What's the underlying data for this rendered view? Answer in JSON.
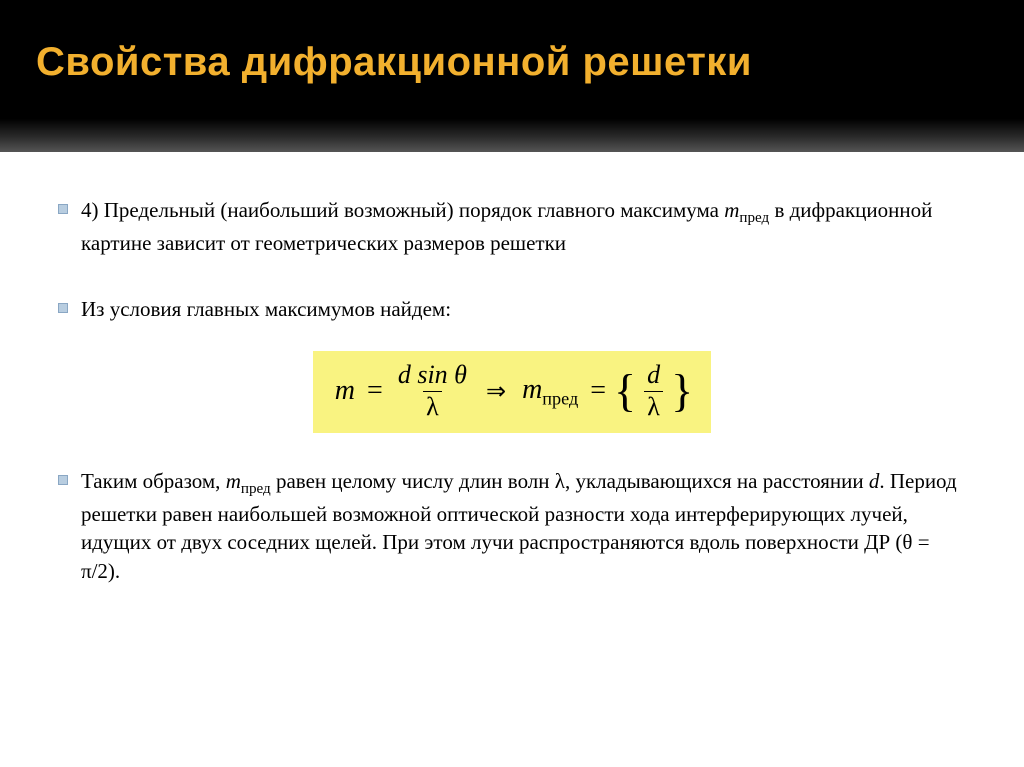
{
  "slide": {
    "title": "Свойства дифракционной решетки",
    "header_bg_top": "#000000",
    "header_bg_bottom": "#555555",
    "title_color": "#f2b02e",
    "title_fontsize": 40,
    "bullet_color": "#b8cde0",
    "body_fontsize": 21,
    "body_color": "#000000"
  },
  "bullets": {
    "b1_prefix": "4) Предельный (наибольший возможный) порядок главного максимума ",
    "b1_var": "m",
    "b1_sub": "пред",
    "b1_suffix": " в дифракционной картине зависит от геометрических размеров решетки",
    "b2": "Из условия главных максимумов найдем:",
    "b3_p1": "Таким образом, ",
    "b3_var": "m",
    "b3_sub": "пред",
    "b3_p2": " равен целому числу длин волн λ, укладывающихся на расстоянии ",
    "b3_d": "d",
    "b3_p3": ". Период решетки равен наибольшей возможной оптической разности хода интерферирующих лучей, идущих от двух соседних щелей. При этом лучи распространяются вдоль поверхности ДР (θ = π/2)."
  },
  "formula": {
    "background": "#f9f381",
    "fontsize": 28,
    "lhs_m": "m",
    "eq1": "=",
    "frac1_num": "d sin θ",
    "frac1_den": "λ",
    "implies": "⇒",
    "rhs_m": "m",
    "rhs_sub": "пред",
    "eq2": "=",
    "frac2_num": "d",
    "frac2_den": "λ",
    "brace_l": "{",
    "brace_r": "}"
  }
}
